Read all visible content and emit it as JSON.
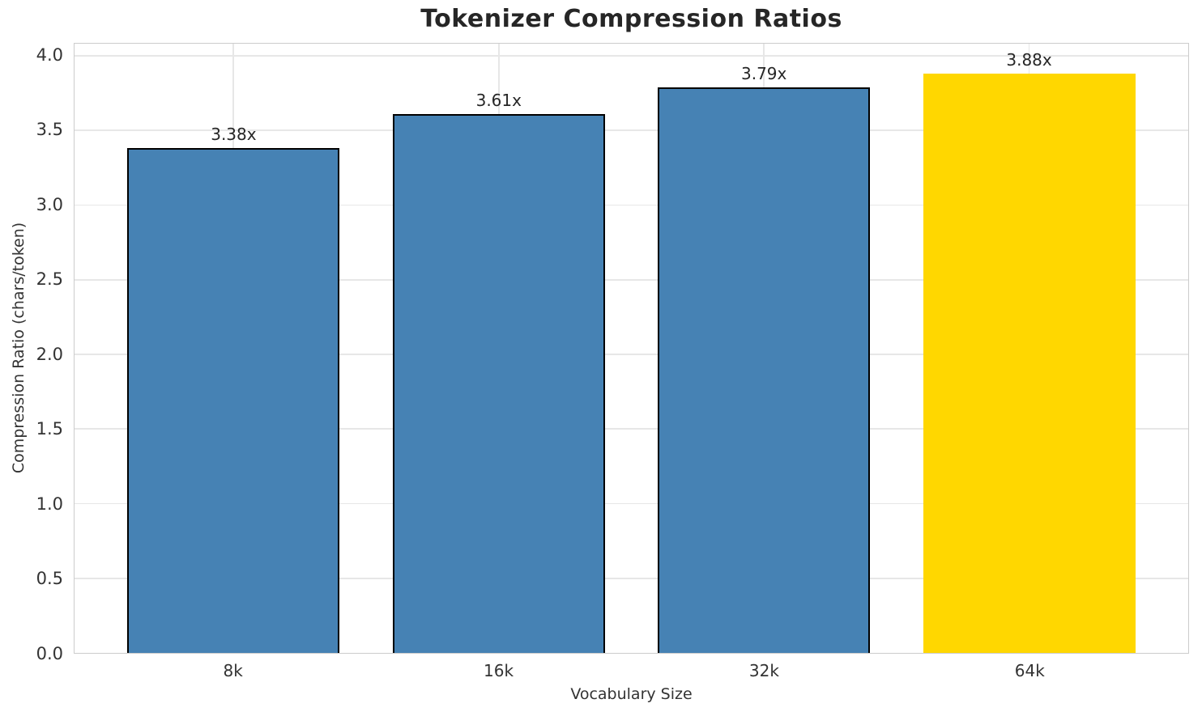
{
  "chart_data": {
    "type": "bar",
    "title": "Tokenizer Compression Ratios",
    "xlabel": "Vocabulary Size",
    "ylabel": "Compression Ratio (chars/token)",
    "categories": [
      "8k",
      "16k",
      "32k",
      "64k"
    ],
    "values": [
      3.38,
      3.61,
      3.79,
      3.88
    ],
    "bar_labels": [
      "3.38x",
      "3.61x",
      "3.79x",
      "3.88x"
    ],
    "yticks": [
      0.0,
      0.5,
      1.0,
      1.5,
      2.0,
      2.5,
      3.0,
      3.5,
      4.0
    ],
    "ytick_labels": [
      "0.0",
      "0.5",
      "1.0",
      "1.5",
      "2.0",
      "2.5",
      "3.0",
      "3.5",
      "4.0"
    ],
    "ylim": [
      0,
      4.08
    ],
    "grid": true,
    "legend": false,
    "bar_colors": [
      "#4682B4",
      "#4682B4",
      "#4682B4",
      "#FFD700"
    ],
    "bar_edge_colors": [
      "#000000",
      "#000000",
      "#000000",
      "none"
    ],
    "colors": {
      "default_bar": "#4682B4",
      "highlight_bar": "#FFD700",
      "bar_edge": "#000000",
      "grid": "#e7e7e7",
      "spine": "#cccccc",
      "text": "#262626",
      "tick_text": "#333333",
      "background": "#ffffff"
    }
  }
}
